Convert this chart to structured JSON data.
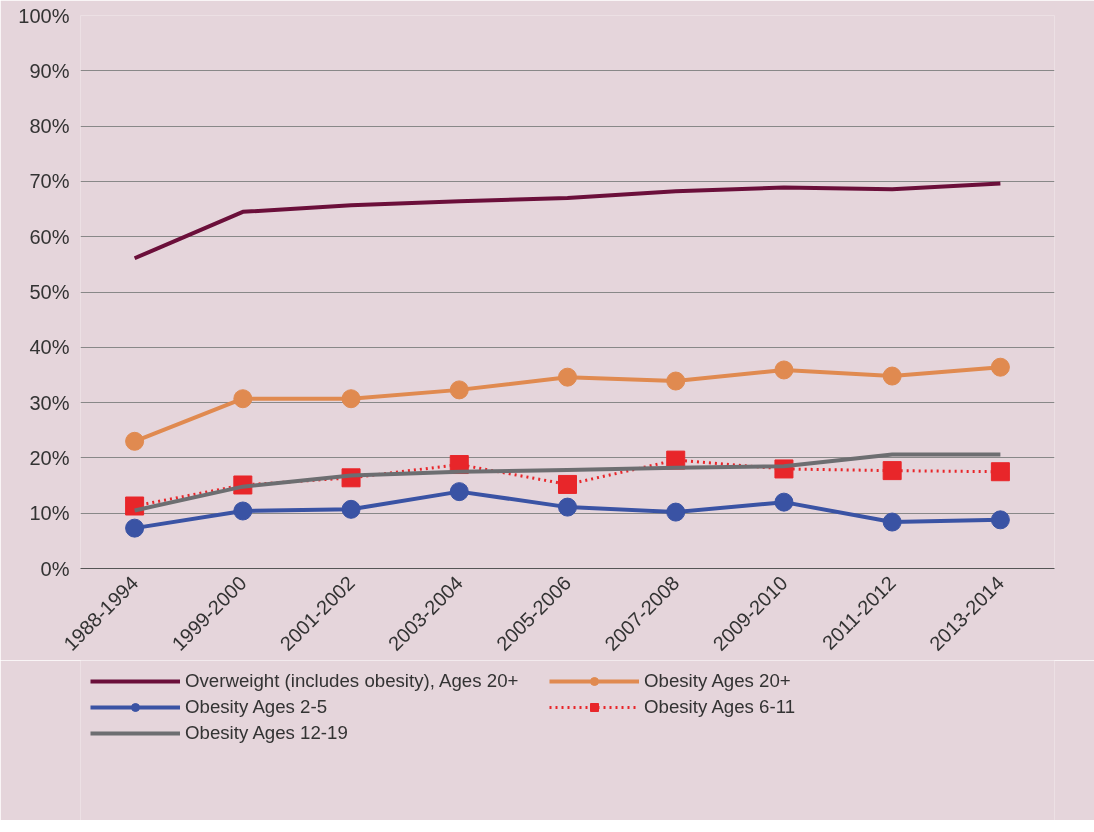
{
  "chart_data": {
    "type": "line",
    "categories": [
      "1988-1994",
      "1999-2000",
      "2001-2002",
      "2003-2004",
      "2005-2006",
      "2007-2008",
      "2009-2010",
      "2011-2012",
      "2013-2014"
    ],
    "ylim": [
      0,
      100
    ],
    "yticks": [
      {
        "value": 0,
        "label": "0%"
      },
      {
        "value": 10,
        "label": "10%"
      },
      {
        "value": 20,
        "label": "20%"
      },
      {
        "value": 30,
        "label": "30%"
      },
      {
        "value": 40,
        "label": "40%"
      },
      {
        "value": 50,
        "label": "50%"
      },
      {
        "value": 60,
        "label": "60%"
      },
      {
        "value": 70,
        "label": "70%"
      },
      {
        "value": 80,
        "label": "80%"
      },
      {
        "value": 90,
        "label": "90%"
      },
      {
        "value": 100,
        "label": "100%"
      }
    ],
    "grid": "y",
    "legend": "bottom",
    "series": [
      {
        "name": "Overweight (includes obesity), Ages 20+",
        "color": "#6b0f3a",
        "marker": "none",
        "line_style": "solid",
        "values": [
          56.1,
          64.5,
          65.7,
          66.4,
          67.0,
          68.2,
          68.9,
          68.6,
          69.6
        ]
      },
      {
        "name": "Obesity Ages 20+",
        "color": "#e08a50",
        "marker": "circle",
        "line_style": "solid",
        "values": [
          23.0,
          30.7,
          30.7,
          32.3,
          34.6,
          33.9,
          35.9,
          34.8,
          36.4
        ]
      },
      {
        "name": "Obesity Ages 2-5",
        "color": "#3a53a4",
        "marker": "circle",
        "line_style": "solid",
        "values": [
          7.3,
          10.4,
          10.7,
          13.9,
          11.1,
          10.2,
          12.0,
          8.4,
          8.8
        ]
      },
      {
        "name": "Obesity Ages 6-11",
        "color": "#e8262a",
        "marker": "square",
        "line_style": "dotted",
        "values": [
          11.3,
          15.1,
          16.4,
          18.8,
          15.2,
          19.6,
          18.0,
          17.7,
          17.5
        ]
      },
      {
        "name": "Obesity Ages 12-19",
        "color": "#6d6e71",
        "marker": "none",
        "line_style": "solid",
        "values": [
          10.5,
          14.8,
          16.8,
          17.5,
          17.8,
          18.2,
          18.5,
          20.6,
          20.6
        ]
      }
    ]
  }
}
